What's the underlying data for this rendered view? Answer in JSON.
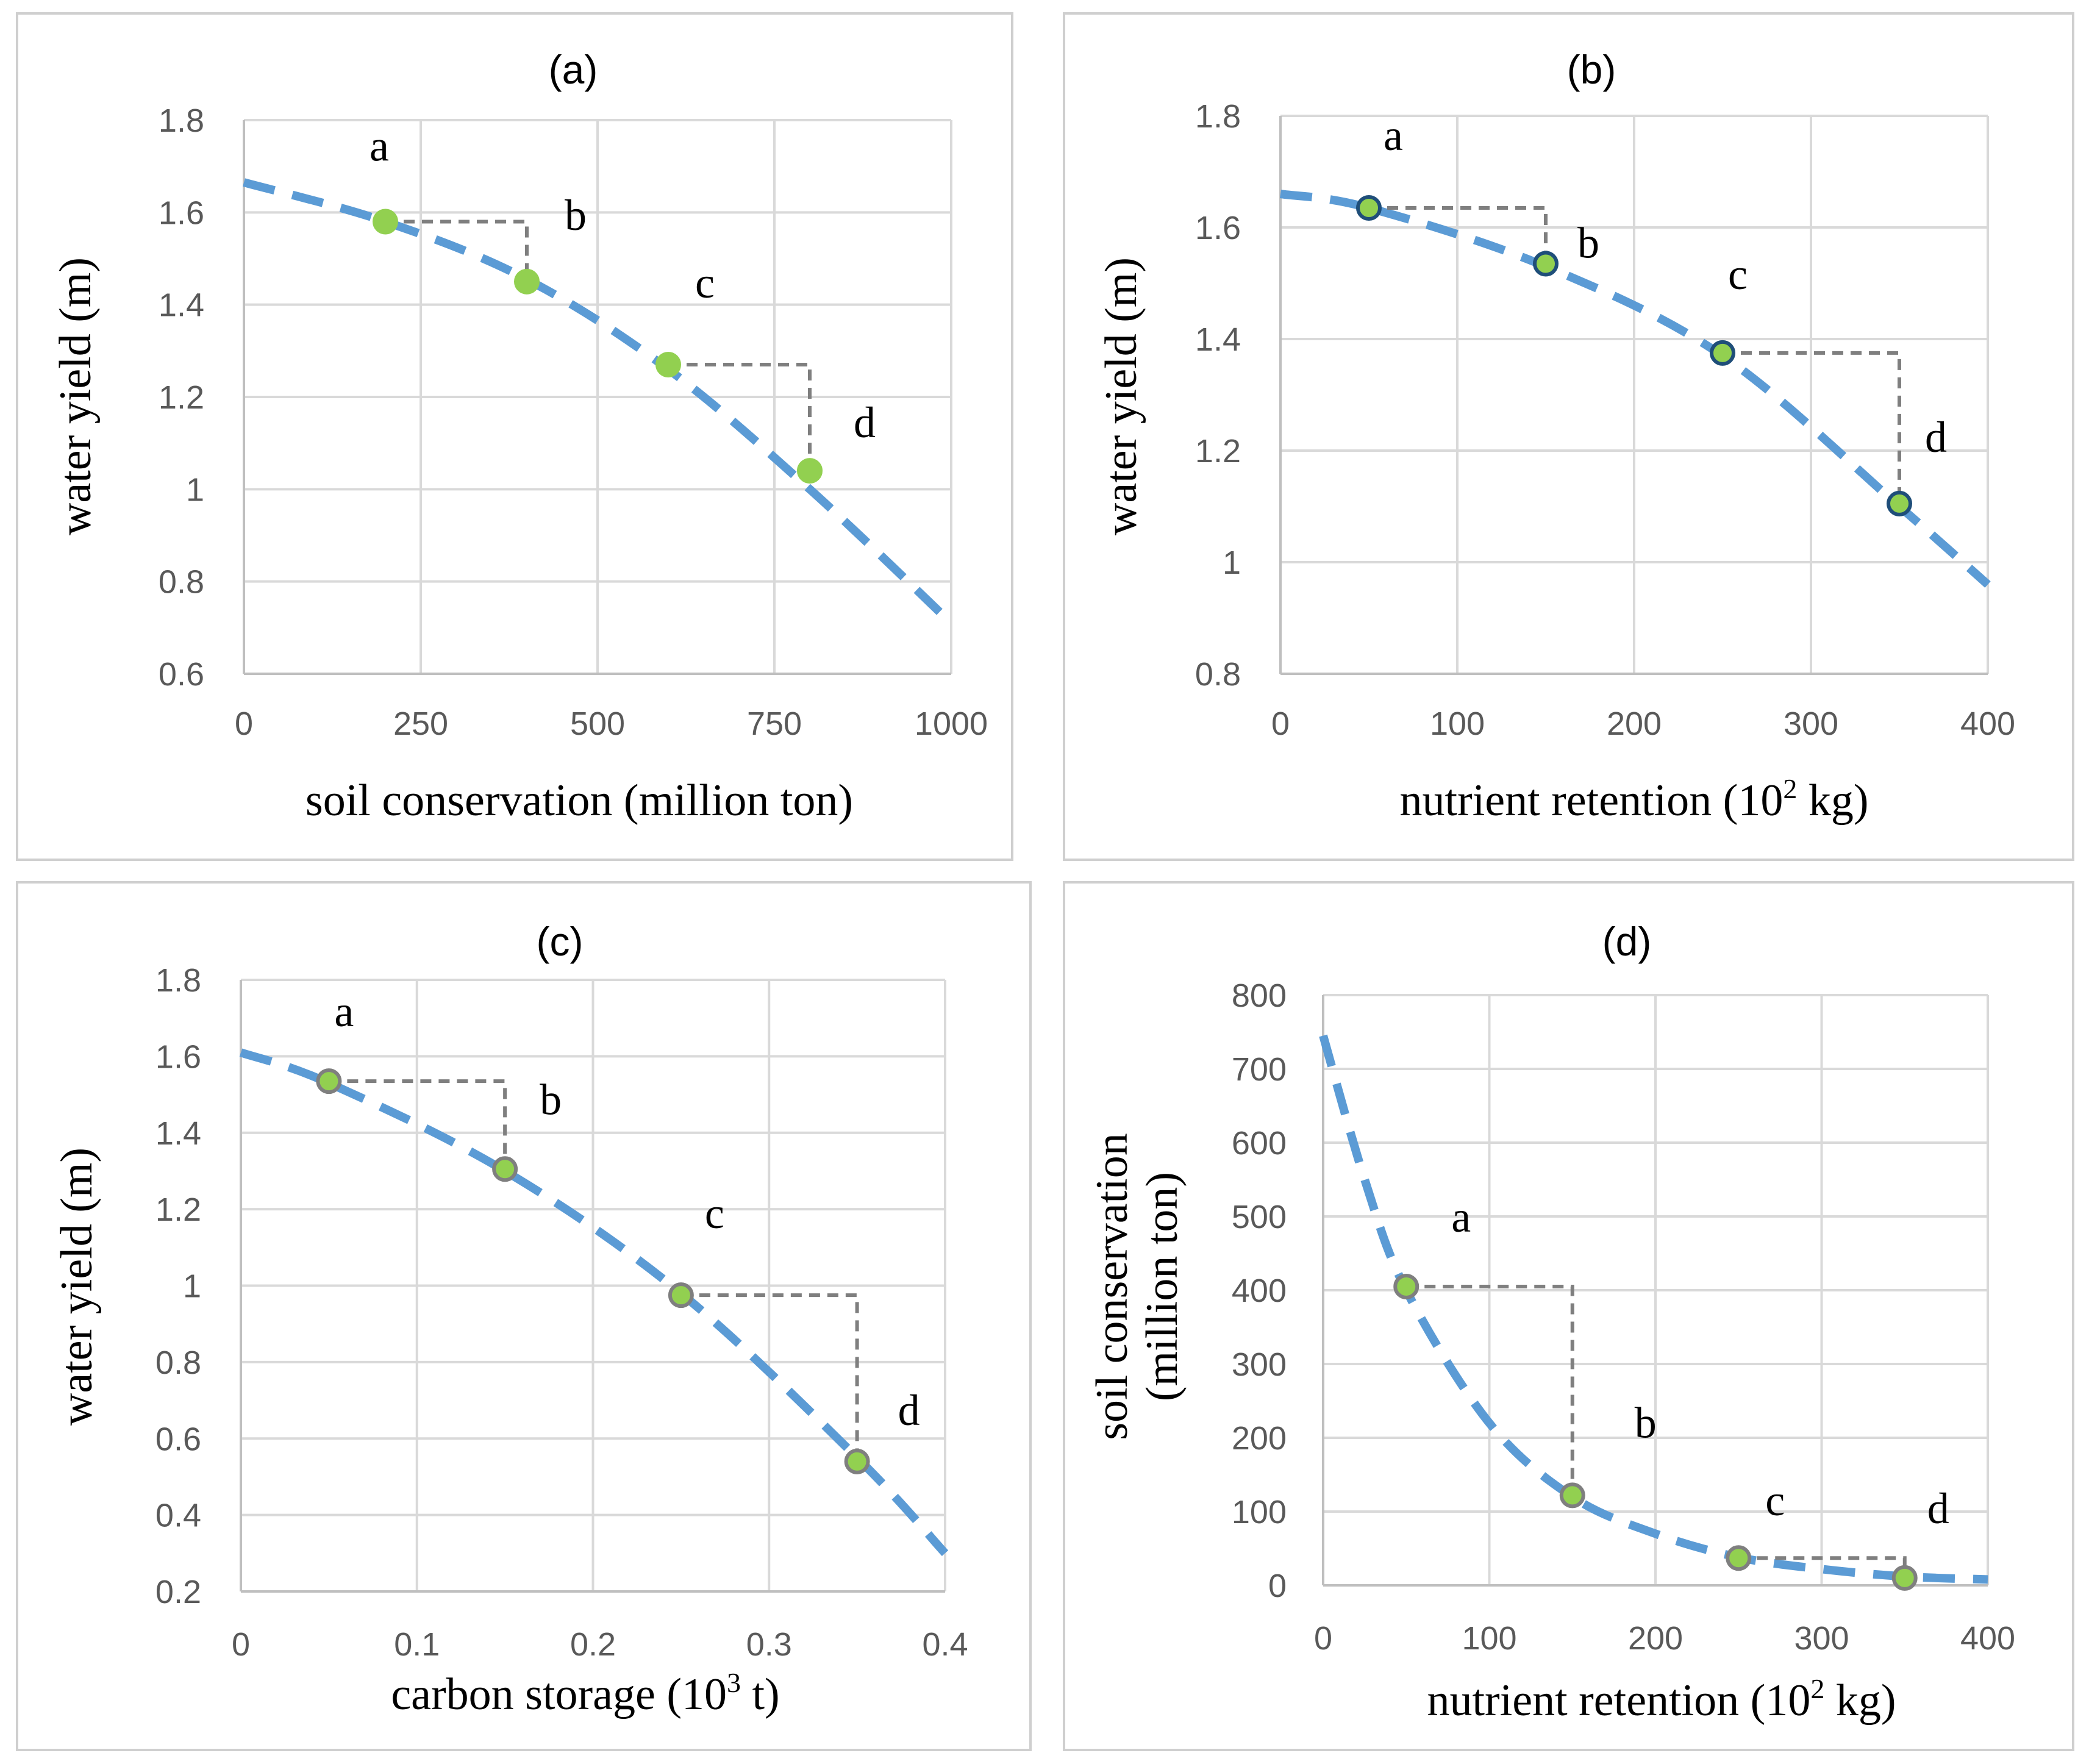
{
  "chart_data": [
    {
      "type": "scatter",
      "panel": "(a)",
      "title": "(a)",
      "xlabel": "soil conservation (million ton)",
      "xlabel_sup": "",
      "xlabel_after": "",
      "ylabel": "water  yield (m)",
      "ylabel2": "",
      "xlim": [
        0,
        1000
      ],
      "ylim": [
        0.6,
        1.8
      ],
      "xticks": [
        0,
        250,
        500,
        750,
        1000
      ],
      "yticks": [
        0.6,
        0.8,
        1,
        1.2,
        1.4,
        1.6,
        1.8
      ],
      "xtick_labels": [
        "0",
        "250",
        "500",
        "750",
        "1000"
      ],
      "ytick_labels": [
        "0.6",
        "0.8",
        "1",
        "1.2",
        "1.4",
        "1.6",
        "1.8"
      ],
      "marker_color": "#92d050",
      "marker_edge": "#92d050",
      "curve": {
        "x": [
          0,
          200,
          400,
          600,
          800,
          1000
        ],
        "y": [
          1.665,
          1.58,
          1.455,
          1.26,
          1.0,
          0.71
        ]
      },
      "points": [
        {
          "label": "a",
          "x": 200,
          "y": 1.58
        },
        {
          "label": "b",
          "x": 400,
          "y": 1.45
        },
        {
          "label": "c",
          "x": 600,
          "y": 1.27
        },
        {
          "label": "d",
          "x": 800,
          "y": 1.04
        }
      ]
    },
    {
      "type": "scatter",
      "panel": "(b)",
      "title": "(b)",
      "xlabel": "nutrient retention (10",
      "xlabel_sup": "2",
      "xlabel_after": " kg)",
      "ylabel": "water  yield (m)",
      "ylabel2": "",
      "xlim": [
        0,
        400
      ],
      "ylim": [
        0.8,
        1.8
      ],
      "xticks": [
        0,
        100,
        200,
        300,
        400
      ],
      "yticks": [
        0.8,
        1,
        1.2,
        1.4,
        1.6,
        1.8
      ],
      "xtick_labels": [
        "0",
        "100",
        "200",
        "300",
        "400"
      ],
      "ytick_labels": [
        "0.8",
        "1",
        "1.2",
        "1.4",
        "1.6",
        "1.8"
      ],
      "marker_color": "#92d050",
      "marker_edge": "#1f4e79",
      "curve": {
        "x": [
          0,
          50,
          150,
          250,
          350,
          400
        ],
        "y": [
          1.66,
          1.635,
          1.53,
          1.37,
          1.1,
          0.96
        ]
      },
      "points": [
        {
          "label": "a",
          "x": 50,
          "y": 1.635
        },
        {
          "label": "b",
          "x": 150,
          "y": 1.535
        },
        {
          "label": "c",
          "x": 250,
          "y": 1.375
        },
        {
          "label": "d",
          "x": 350,
          "y": 1.105
        }
      ]
    },
    {
      "type": "scatter",
      "panel": "(c)",
      "title": "(c)",
      "xlabel": "carbon storage (10",
      "xlabel_sup": "3",
      "xlabel_after": " t)",
      "ylabel": "water  yield (m)",
      "ylabel2": "",
      "xlim": [
        0,
        0.4
      ],
      "ylim": [
        0.2,
        1.8
      ],
      "xticks": [
        0,
        0.1,
        0.2,
        0.3,
        0.4
      ],
      "yticks": [
        0.2,
        0.4,
        0.6,
        0.8,
        1,
        1.2,
        1.4,
        1.6,
        1.8
      ],
      "xtick_labels": [
        "0",
        "0.1",
        "0.2",
        "0.3",
        "0.4"
      ],
      "ytick_labels": [
        "0.2",
        "0.4",
        "0.6",
        "0.8",
        "1",
        "1.2",
        "1.4",
        "1.6",
        "1.8"
      ],
      "marker_color": "#92d050",
      "marker_edge": "#7f7f7f",
      "curve": {
        "x": [
          0,
          0.05,
          0.15,
          0.25,
          0.35,
          0.4
        ],
        "y": [
          1.61,
          1.53,
          1.3,
          0.98,
          0.55,
          0.3
        ]
      },
      "points": [
        {
          "label": "a",
          "x": 0.05,
          "y": 1.535
        },
        {
          "label": "b",
          "x": 0.15,
          "y": 1.305
        },
        {
          "label": "c",
          "x": 0.25,
          "y": 0.975
        },
        {
          "label": "d",
          "x": 0.35,
          "y": 0.54
        }
      ]
    },
    {
      "type": "scatter",
      "panel": "(d)",
      "title": "(d)",
      "xlabel": "nutrient retention (10",
      "xlabel_sup": "2",
      "xlabel_after": " kg)",
      "ylabel": "soil conservation",
      "ylabel2": "(million ton)",
      "xlim": [
        0,
        400
      ],
      "ylim": [
        0,
        800
      ],
      "xticks": [
        0,
        100,
        200,
        300,
        400
      ],
      "yticks": [
        0,
        100,
        200,
        300,
        400,
        500,
        600,
        700,
        800
      ],
      "xtick_labels": [
        "0",
        "100",
        "200",
        "300",
        "400"
      ],
      "ytick_labels": [
        "0",
        "100",
        "200",
        "300",
        "400",
        "500",
        "600",
        "700",
        "800"
      ],
      "marker_color": "#92d050",
      "marker_edge": "#7f7f7f",
      "curve": {
        "x": [
          0,
          25,
          50,
          100,
          150,
          200,
          250,
          300,
          350,
          400
        ],
        "y": [
          745,
          550,
          400,
          220,
          120,
          70,
          38,
          22,
          12,
          8
        ]
      },
      "points": [
        {
          "label": "a",
          "x": 50,
          "y": 405
        },
        {
          "label": "b",
          "x": 150,
          "y": 122
        },
        {
          "label": "c",
          "x": 250,
          "y": 37
        },
        {
          "label": "d",
          "x": 350,
          "y": 10
        }
      ]
    }
  ]
}
